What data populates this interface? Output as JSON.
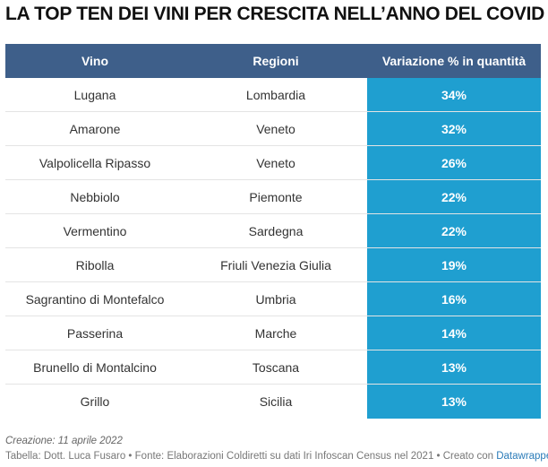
{
  "title": "LA TOP TEN DEI VINI PER CRESCITA NELL’ANNO DEL COVID",
  "chart_data": {
    "type": "table",
    "columns": [
      "Vino",
      "Regioni",
      "Variazione % in quantità"
    ],
    "rows": [
      {
        "vino": "Lugana",
        "regione": "Lombardia",
        "variazione": "34%"
      },
      {
        "vino": "Amarone",
        "regione": "Veneto",
        "variazione": "32%"
      },
      {
        "vino": "Valpolicella Ripasso",
        "regione": "Veneto",
        "variazione": "26%"
      },
      {
        "vino": "Nebbiolo",
        "regione": "Piemonte",
        "variazione": "22%"
      },
      {
        "vino": "Vermentino",
        "regione": "Sardegna",
        "variazione": "22%"
      },
      {
        "vino": "Ribolla",
        "regione": "Friuli Venezia Giulia",
        "variazione": "19%"
      },
      {
        "vino": "Sagrantino di Montefalco",
        "regione": "Umbria",
        "variazione": "16%"
      },
      {
        "vino": "Passerina",
        "regione": "Marche",
        "variazione": "14%"
      },
      {
        "vino": "Brunello di Montalcino",
        "regione": "Toscana",
        "variazione": "13%"
      },
      {
        "vino": "Grillo",
        "regione": "Sicilia",
        "variazione": "13%"
      }
    ]
  },
  "colors": {
    "header_bg": "#3e5f8a",
    "highlight": "#1f9fd0"
  },
  "footer": {
    "created": "Creazione: 11 aprile 2022",
    "source_text": "Tabella: Dott. Luca Fusaro • Fonte: Elaborazioni Coldiretti su dati Iri Infoscan Census nel 2021 • Creato con ",
    "tool_link": "Datawrapper"
  }
}
